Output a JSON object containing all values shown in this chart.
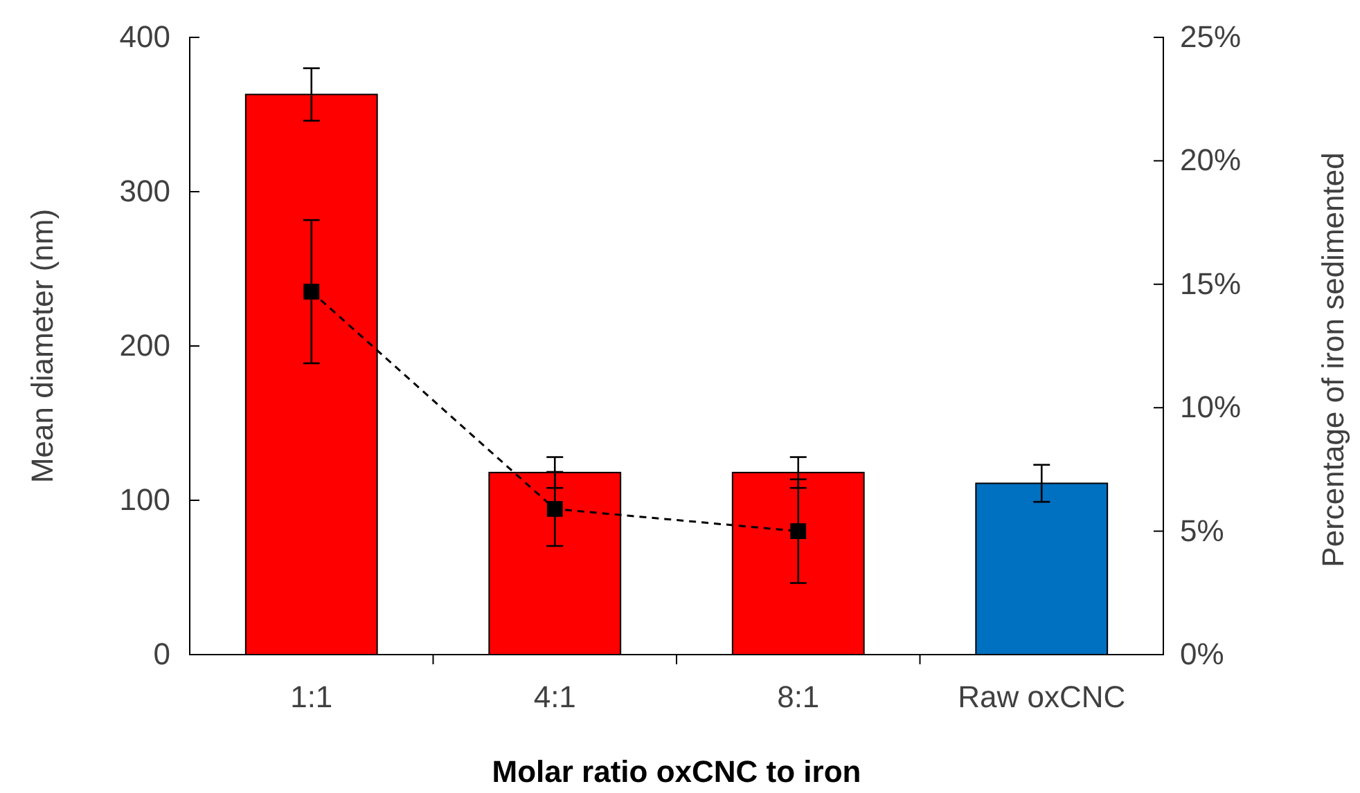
{
  "chart_data": {
    "type": "bar",
    "xlabel": "Molar ratio oxCNC to iron",
    "ylabel": "Mean diameter (nm)",
    "y2label": "Percentage of iron sedimented",
    "categories": [
      "1:1",
      "4:1",
      "8:1",
      "Raw oxCNC"
    ],
    "series": [
      {
        "colors": [
          "#ff0000",
          "#ff0000",
          "#ff0000",
          "#0070c0"
        ],
        "values": [
          363,
          118,
          118,
          111
        ],
        "errors": [
          17,
          10,
          10,
          12
        ]
      },
      {
        "type": "line",
        "axis": "y2",
        "color": "#000000",
        "marker": "square",
        "line_style": "dashed",
        "values": [
          14.7,
          5.9,
          5.0,
          null
        ],
        "errors": [
          2.9,
          1.5,
          2.1,
          null
        ]
      }
    ],
    "ylim": [
      0,
      400
    ],
    "yticks": [
      0,
      100,
      200,
      300,
      400
    ],
    "y2lim": [
      0,
      25
    ],
    "y2ticks": [
      {
        "value": 0,
        "label": "0%"
      },
      {
        "value": 5,
        "label": "5%"
      },
      {
        "value": 10,
        "label": "10%"
      },
      {
        "value": 15,
        "label": "15%"
      },
      {
        "value": 20,
        "label": "20%"
      },
      {
        "value": 25,
        "label": "25%"
      }
    ]
  }
}
